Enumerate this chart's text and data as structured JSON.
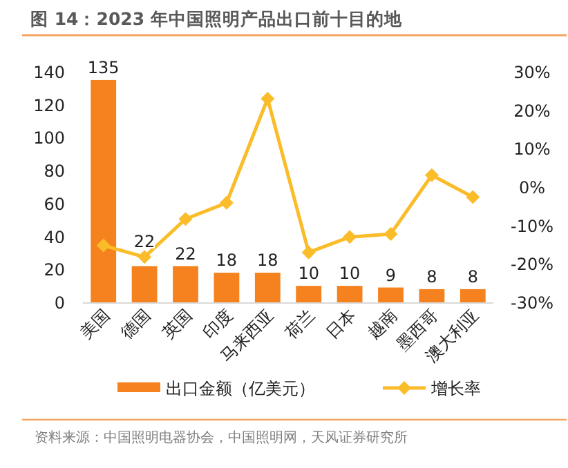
{
  "chart_data": {
    "type": "bar",
    "title": "图 14：2023 年中国照明产品出口前十目的地",
    "categories": [
      "美国",
      "德国",
      "英国",
      "印度",
      "马来西亚",
      "荷兰",
      "日本",
      "越南",
      "墨西哥",
      "澳大利亚"
    ],
    "series": [
      {
        "name": "出口金额（亿美元）",
        "color": "#f5821f",
        "values": [
          135,
          22,
          22,
          18,
          18,
          10,
          10,
          9,
          8,
          8
        ],
        "value_labels": [
          "135",
          "22",
          "22",
          "18",
          "18",
          "10",
          "10",
          "9",
          "8",
          "8"
        ]
      },
      {
        "name": "增长率",
        "type": "line",
        "axis": "y2",
        "color": "#fbbc2a",
        "marker": "diamond",
        "values": [
          -15.2,
          -18.2,
          -8.3,
          -4.1,
          23.0,
          -17.0,
          -13.0,
          -12.2,
          3.1,
          -2.6
        ]
      }
    ],
    "ylim": [
      0,
      140
    ],
    "yticks": [
      0,
      20,
      40,
      60,
      80,
      100,
      120,
      140
    ],
    "y2lim": [
      -30,
      30
    ],
    "y2ticks": [
      {
        "value": -30,
        "label": "-30%"
      },
      {
        "value": -20,
        "label": "-20%"
      },
      {
        "value": -10,
        "label": "-10%"
      },
      {
        "value": 0,
        "label": "0%"
      },
      {
        "value": 10,
        "label": "10%"
      },
      {
        "value": 20,
        "label": "20%"
      },
      {
        "value": 30,
        "label": "30%"
      }
    ],
    "legend": "bottom",
    "grid": false,
    "annotations": [
      "资料来源：中国照明电器协会，中国照明网，天风证券研究所"
    ]
  }
}
